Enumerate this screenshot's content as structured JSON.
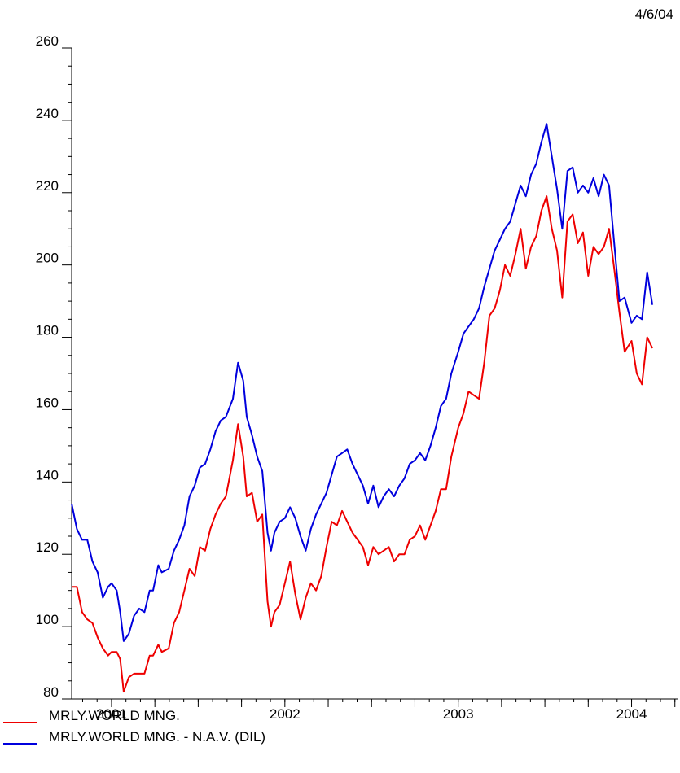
{
  "date_stamp": "4/6/04",
  "chart_data": {
    "type": "line",
    "title": "",
    "xlabel": "",
    "ylabel": "",
    "ylim": [
      80,
      260
    ],
    "y_ticks": [
      80,
      100,
      120,
      140,
      160,
      180,
      200,
      220,
      240,
      260
    ],
    "x_range": [
      2000.77,
      2004.27
    ],
    "x_year_labels": [
      {
        "label": "2001",
        "x": 2001.0
      },
      {
        "label": "2002",
        "x": 2002.0
      },
      {
        "label": "2003",
        "x": 2003.0
      },
      {
        "label": "2004",
        "x": 2004.0
      }
    ],
    "x_major_ticks": [
      2001.0,
      2001.25,
      2001.5,
      2001.75,
      2002.0,
      2002.25,
      2002.5,
      2002.75,
      2003.0,
      2003.25,
      2003.5,
      2003.75,
      2004.0,
      2004.25
    ],
    "legend_position": "bottom-left",
    "grid": false,
    "series": [
      {
        "name": "MRLY.WORLD MNG.",
        "color": "#ee0000",
        "points": [
          [
            2000.77,
            111
          ],
          [
            2000.8,
            111
          ],
          [
            2000.83,
            104
          ],
          [
            2000.86,
            102
          ],
          [
            2000.89,
            101
          ],
          [
            2000.92,
            97
          ],
          [
            2000.95,
            94
          ],
          [
            2000.98,
            92
          ],
          [
            2001.0,
            93
          ],
          [
            2001.03,
            93
          ],
          [
            2001.05,
            91
          ],
          [
            2001.07,
            82
          ],
          [
            2001.1,
            86
          ],
          [
            2001.13,
            87
          ],
          [
            2001.16,
            87
          ],
          [
            2001.19,
            87
          ],
          [
            2001.22,
            92
          ],
          [
            2001.24,
            92
          ],
          [
            2001.27,
            95
          ],
          [
            2001.29,
            93
          ],
          [
            2001.33,
            94
          ],
          [
            2001.36,
            101
          ],
          [
            2001.39,
            104
          ],
          [
            2001.42,
            110
          ],
          [
            2001.45,
            116
          ],
          [
            2001.48,
            114
          ],
          [
            2001.51,
            122
          ],
          [
            2001.54,
            121
          ],
          [
            2001.57,
            127
          ],
          [
            2001.6,
            131
          ],
          [
            2001.63,
            134
          ],
          [
            2001.66,
            136
          ],
          [
            2001.7,
            146
          ],
          [
            2001.73,
            156
          ],
          [
            2001.76,
            147
          ],
          [
            2001.78,
            136
          ],
          [
            2001.81,
            137
          ],
          [
            2001.84,
            129
          ],
          [
            2001.87,
            131
          ],
          [
            2001.9,
            107
          ],
          [
            2001.92,
            100
          ],
          [
            2001.94,
            104
          ],
          [
            2001.97,
            106
          ],
          [
            2002.0,
            112
          ],
          [
            2002.03,
            118
          ],
          [
            2002.06,
            109
          ],
          [
            2002.09,
            102
          ],
          [
            2002.12,
            108
          ],
          [
            2002.15,
            112
          ],
          [
            2002.18,
            110
          ],
          [
            2002.21,
            114
          ],
          [
            2002.24,
            122
          ],
          [
            2002.27,
            129
          ],
          [
            2002.3,
            128
          ],
          [
            2002.33,
            132
          ],
          [
            2002.36,
            129
          ],
          [
            2002.39,
            126
          ],
          [
            2002.42,
            124
          ],
          [
            2002.45,
            122
          ],
          [
            2002.48,
            117
          ],
          [
            2002.51,
            122
          ],
          [
            2002.54,
            120
          ],
          [
            2002.57,
            121
          ],
          [
            2002.6,
            122
          ],
          [
            2002.63,
            118
          ],
          [
            2002.66,
            120
          ],
          [
            2002.69,
            120
          ],
          [
            2002.72,
            124
          ],
          [
            2002.75,
            125
          ],
          [
            2002.78,
            128
          ],
          [
            2002.81,
            124
          ],
          [
            2002.84,
            128
          ],
          [
            2002.87,
            132
          ],
          [
            2002.9,
            138
          ],
          [
            2002.93,
            138
          ],
          [
            2002.96,
            147
          ],
          [
            2003.0,
            155
          ],
          [
            2003.03,
            159
          ],
          [
            2003.06,
            165
          ],
          [
            2003.09,
            164
          ],
          [
            2003.12,
            163
          ],
          [
            2003.15,
            173
          ],
          [
            2003.18,
            186
          ],
          [
            2003.21,
            188
          ],
          [
            2003.24,
            193
          ],
          [
            2003.27,
            200
          ],
          [
            2003.3,
            197
          ],
          [
            2003.33,
            203
          ],
          [
            2003.36,
            210
          ],
          [
            2003.39,
            199
          ],
          [
            2003.42,
            205
          ],
          [
            2003.45,
            208
          ],
          [
            2003.48,
            215
          ],
          [
            2003.51,
            219
          ],
          [
            2003.54,
            210
          ],
          [
            2003.57,
            204
          ],
          [
            2003.6,
            191
          ],
          [
            2003.63,
            212
          ],
          [
            2003.66,
            214
          ],
          [
            2003.69,
            206
          ],
          [
            2003.72,
            209
          ],
          [
            2003.75,
            197
          ],
          [
            2003.78,
            205
          ],
          [
            2003.81,
            203
          ],
          [
            2003.84,
            205
          ],
          [
            2003.87,
            210
          ],
          [
            2003.9,
            199
          ],
          [
            2003.93,
            187
          ],
          [
            2003.96,
            176
          ],
          [
            2004.0,
            179
          ],
          [
            2004.03,
            170
          ],
          [
            2004.06,
            167
          ],
          [
            2004.09,
            180
          ],
          [
            2004.12,
            177
          ]
        ]
      },
      {
        "name": "MRLY.WORLD MNG. - N.A.V. (DIL)",
        "color": "#0000dd",
        "points": [
          [
            2000.77,
            134
          ],
          [
            2000.8,
            127
          ],
          [
            2000.83,
            124
          ],
          [
            2000.86,
            124
          ],
          [
            2000.89,
            118
          ],
          [
            2000.92,
            115
          ],
          [
            2000.95,
            108
          ],
          [
            2000.98,
            111
          ],
          [
            2001.0,
            112
          ],
          [
            2001.03,
            110
          ],
          [
            2001.05,
            104
          ],
          [
            2001.07,
            96
          ],
          [
            2001.1,
            98
          ],
          [
            2001.13,
            103
          ],
          [
            2001.16,
            105
          ],
          [
            2001.19,
            104
          ],
          [
            2001.22,
            110
          ],
          [
            2001.24,
            110
          ],
          [
            2001.27,
            117
          ],
          [
            2001.29,
            115
          ],
          [
            2001.33,
            116
          ],
          [
            2001.36,
            121
          ],
          [
            2001.39,
            124
          ],
          [
            2001.42,
            128
          ],
          [
            2001.45,
            136
          ],
          [
            2001.48,
            139
          ],
          [
            2001.51,
            144
          ],
          [
            2001.54,
            145
          ],
          [
            2001.57,
            149
          ],
          [
            2001.6,
            154
          ],
          [
            2001.63,
            157
          ],
          [
            2001.66,
            158
          ],
          [
            2001.7,
            163
          ],
          [
            2001.73,
            173
          ],
          [
            2001.76,
            168
          ],
          [
            2001.78,
            158
          ],
          [
            2001.81,
            153
          ],
          [
            2001.84,
            147
          ],
          [
            2001.87,
            143
          ],
          [
            2001.9,
            126
          ],
          [
            2001.92,
            121
          ],
          [
            2001.94,
            126
          ],
          [
            2001.97,
            129
          ],
          [
            2002.0,
            130
          ],
          [
            2002.03,
            133
          ],
          [
            2002.06,
            130
          ],
          [
            2002.09,
            125
          ],
          [
            2002.12,
            121
          ],
          [
            2002.15,
            127
          ],
          [
            2002.18,
            131
          ],
          [
            2002.21,
            134
          ],
          [
            2002.24,
            137
          ],
          [
            2002.27,
            142
          ],
          [
            2002.3,
            147
          ],
          [
            2002.33,
            148
          ],
          [
            2002.36,
            149
          ],
          [
            2002.39,
            145
          ],
          [
            2002.42,
            142
          ],
          [
            2002.45,
            139
          ],
          [
            2002.48,
            134
          ],
          [
            2002.51,
            139
          ],
          [
            2002.54,
            133
          ],
          [
            2002.57,
            136
          ],
          [
            2002.6,
            138
          ],
          [
            2002.63,
            136
          ],
          [
            2002.66,
            139
          ],
          [
            2002.69,
            141
          ],
          [
            2002.72,
            145
          ],
          [
            2002.75,
            146
          ],
          [
            2002.78,
            148
          ],
          [
            2002.81,
            146
          ],
          [
            2002.84,
            150
          ],
          [
            2002.87,
            155
          ],
          [
            2002.9,
            161
          ],
          [
            2002.93,
            163
          ],
          [
            2002.96,
            170
          ],
          [
            2003.0,
            176
          ],
          [
            2003.03,
            181
          ],
          [
            2003.06,
            183
          ],
          [
            2003.09,
            185
          ],
          [
            2003.12,
            188
          ],
          [
            2003.15,
            194
          ],
          [
            2003.18,
            199
          ],
          [
            2003.21,
            204
          ],
          [
            2003.24,
            207
          ],
          [
            2003.27,
            210
          ],
          [
            2003.3,
            212
          ],
          [
            2003.33,
            217
          ],
          [
            2003.36,
            222
          ],
          [
            2003.39,
            219
          ],
          [
            2003.42,
            225
          ],
          [
            2003.45,
            228
          ],
          [
            2003.48,
            234
          ],
          [
            2003.51,
            239
          ],
          [
            2003.54,
            230
          ],
          [
            2003.57,
            221
          ],
          [
            2003.6,
            210
          ],
          [
            2003.63,
            226
          ],
          [
            2003.66,
            227
          ],
          [
            2003.69,
            220
          ],
          [
            2003.72,
            222
          ],
          [
            2003.75,
            220
          ],
          [
            2003.78,
            224
          ],
          [
            2003.81,
            219
          ],
          [
            2003.84,
            225
          ],
          [
            2003.87,
            222
          ],
          [
            2003.9,
            206
          ],
          [
            2003.93,
            190
          ],
          [
            2003.96,
            191
          ],
          [
            2004.0,
            184
          ],
          [
            2004.03,
            186
          ],
          [
            2004.06,
            185
          ],
          [
            2004.09,
            198
          ],
          [
            2004.12,
            189
          ]
        ]
      }
    ]
  }
}
